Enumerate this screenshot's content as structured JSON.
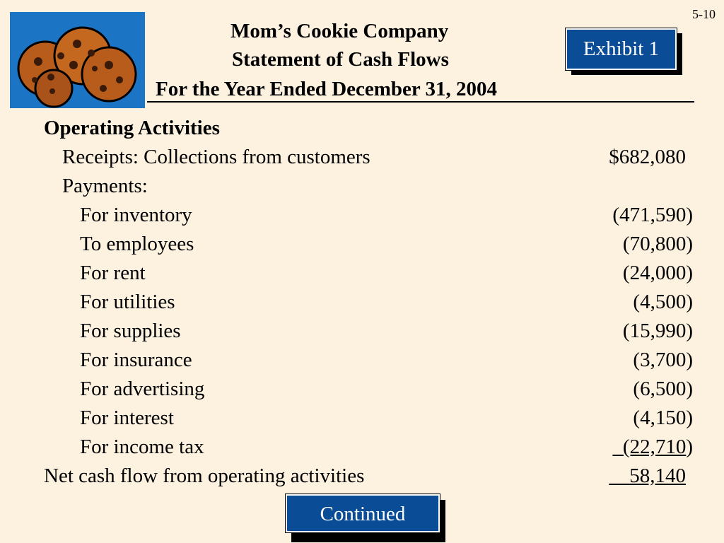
{
  "slide_number": "5-10",
  "title": {
    "line1": "Mom’s Cookie Company",
    "line2": "Statement of Cash Flows",
    "line3": "For the Year Ended December 31, 2004"
  },
  "logo": {
    "icon": "cookies-icon",
    "background": "#1b74c4"
  },
  "exhibit_label": "Exhibit 1",
  "section_heading": "Operating Activities",
  "receipts": {
    "label": "Receipts:  Collections from customers",
    "amount": "$682,080"
  },
  "payments_label": "Payments:",
  "payments": [
    {
      "label": "For inventory",
      "amount": "(471,590)"
    },
    {
      "label": "To employees",
      "amount": "(70,800)"
    },
    {
      "label": "For rent",
      "amount": "(24,000)"
    },
    {
      "label": "For utilities",
      "amount": "(4,500)"
    },
    {
      "label": "For supplies",
      "amount": "(15,990)"
    },
    {
      "label": "For insurance",
      "amount": "(3,700)"
    },
    {
      "label": "For advertising",
      "amount": "(6,500)"
    },
    {
      "label": "For interest",
      "amount": "(4,150)"
    },
    {
      "label": "For income tax",
      "amount_underlined": "(22,710",
      "amount_tail": ")"
    }
  ],
  "net": {
    "label": "Net cash flow from operating activities",
    "amount": "58,140"
  },
  "continued_label": "Continued",
  "colors": {
    "background": "#fdf1df",
    "button": "#0b4c96",
    "button_text": "#ffffff"
  }
}
